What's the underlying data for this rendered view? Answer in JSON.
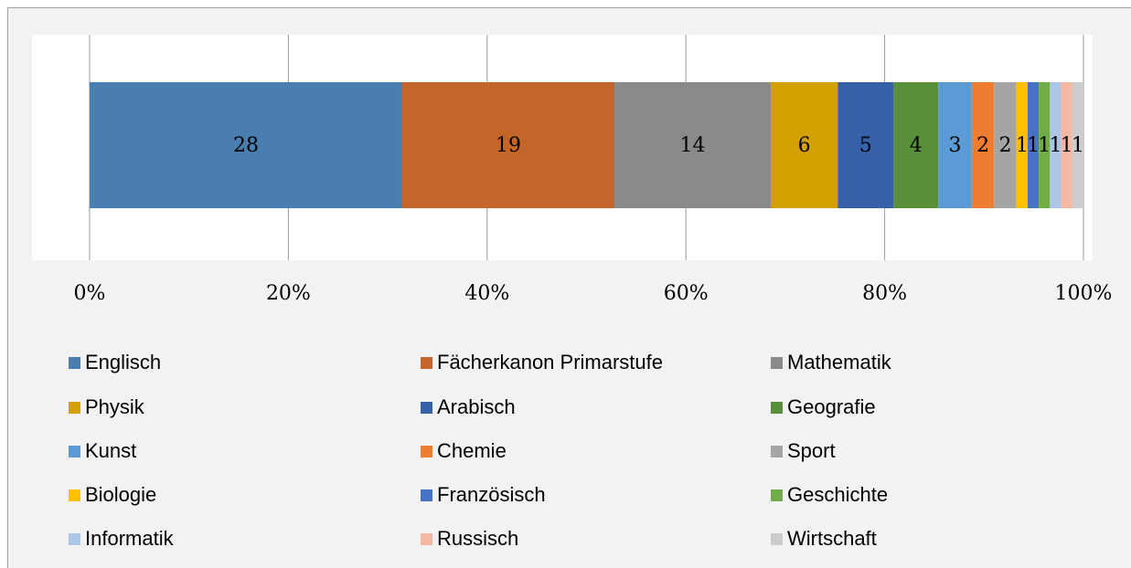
{
  "chart_data": {
    "type": "bar",
    "orientation": "horizontal",
    "stacking": "percent",
    "categories": [
      null
    ],
    "series": [
      {
        "name": "Englisch",
        "color": "#4a7eb0",
        "values": [
          28
        ]
      },
      {
        "name": "Fächerkanon Primarstufe",
        "color": "#c4652a",
        "values": [
          19
        ]
      },
      {
        "name": "Mathematik",
        "color": "#8a8a8a",
        "values": [
          14
        ]
      },
      {
        "name": "Physik",
        "color": "#d4a000",
        "values": [
          6
        ]
      },
      {
        "name": "Arabisch",
        "color": "#3660a8",
        "values": [
          5
        ]
      },
      {
        "name": "Geografie",
        "color": "#5a8f3a",
        "values": [
          4
        ]
      },
      {
        "name": "Kunst",
        "color": "#5b9bd5",
        "values": [
          3
        ]
      },
      {
        "name": "Chemie",
        "color": "#ed7d31",
        "values": [
          2
        ]
      },
      {
        "name": "Sport",
        "color": "#a5a5a5",
        "values": [
          2
        ]
      },
      {
        "name": "Biologie",
        "color": "#ffc000",
        "values": [
          1
        ]
      },
      {
        "name": "Französisch",
        "color": "#4472c4",
        "values": [
          1
        ]
      },
      {
        "name": "Geschichte",
        "color": "#70ad47",
        "values": [
          1
        ]
      },
      {
        "name": "Informatik",
        "color": "#adc6e8",
        "values": [
          1
        ]
      },
      {
        "name": "Russisch",
        "color": "#f4b8a4",
        "values": [
          1
        ]
      },
      {
        "name": "Wirtschaft",
        "color": "#cccccc",
        "values": [
          1
        ]
      }
    ],
    "xlim": [
      0,
      100
    ],
    "xticks": [
      {
        "value": 0,
        "label": "0%"
      },
      {
        "value": 20,
        "label": "20%"
      },
      {
        "value": 40,
        "label": "40%"
      },
      {
        "value": 60,
        "label": "60%"
      },
      {
        "value": 80,
        "label": "80%"
      },
      {
        "value": 100,
        "label": "100%"
      }
    ],
    "grid": true,
    "legend": "bottom"
  }
}
